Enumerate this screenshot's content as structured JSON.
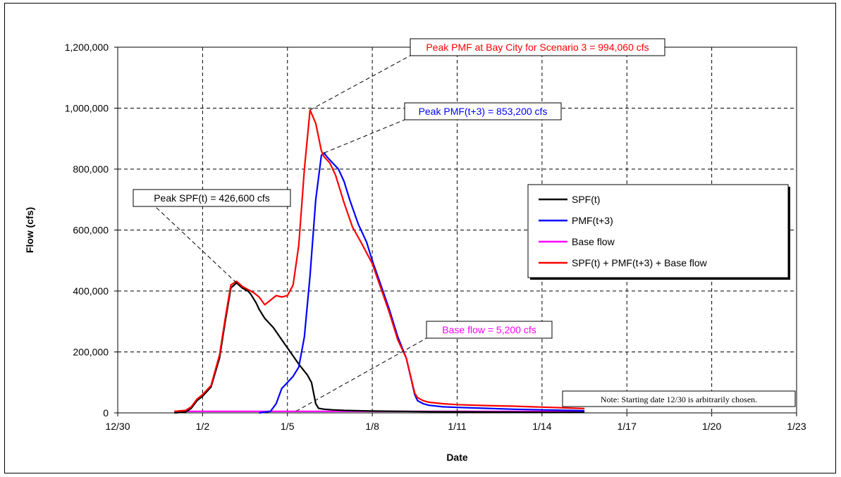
{
  "chart_data": {
    "type": "line",
    "xlabel": "Date",
    "ylabel": "Flow (cfs)",
    "xlim": [
      0,
      24
    ],
    "ylim": [
      0,
      1200000
    ],
    "x_ticks": [
      0,
      3,
      6,
      9,
      12,
      15,
      18,
      21,
      24
    ],
    "x_tick_labels": [
      "12/30",
      "1/2",
      "1/5",
      "1/8",
      "1/11",
      "1/14",
      "1/17",
      "1/20",
      "1/23"
    ],
    "y_ticks": [
      0,
      200000,
      400000,
      600000,
      800000,
      1000000,
      1200000
    ],
    "y_tick_labels": [
      "0",
      "200,000",
      "400,000",
      "600,000",
      "800,000",
      "1,000,000",
      "1,200,000"
    ],
    "grid": true,
    "legend_position": "right",
    "series": [
      {
        "name": "SPF(t)",
        "color": "#000000",
        "x": [
          2.0,
          2.4,
          2.6,
          2.8,
          3.0,
          3.3,
          3.6,
          3.8,
          4.0,
          4.2,
          4.4,
          4.6,
          4.7,
          4.9,
          5.0,
          5.2,
          5.5,
          5.8,
          6.1,
          6.4,
          6.7,
          6.85,
          7.0,
          7.1,
          7.3,
          7.6,
          8.0,
          9.0,
          10.0,
          11.0,
          12.0,
          13.0,
          14.0,
          15.0,
          16.0,
          16.5
        ],
        "y": [
          0,
          3000,
          15000,
          40000,
          55000,
          85000,
          180000,
          300000,
          410000,
          426600,
          410000,
          400000,
          390000,
          360000,
          340000,
          310000,
          280000,
          240000,
          200000,
          160000,
          125000,
          100000,
          30000,
          15000,
          12000,
          10000,
          8000,
          6000,
          5000,
          4000,
          3500,
          3000,
          2500,
          2000,
          1800,
          1500
        ]
      },
      {
        "name": "PMF(t+3)",
        "color": "#0000ff",
        "x": [
          5.0,
          5.4,
          5.6,
          5.8,
          6.0,
          6.2,
          6.4,
          6.6,
          6.8,
          7.0,
          7.2,
          7.3,
          7.4,
          7.6,
          7.8,
          8.0,
          8.2,
          8.5,
          8.8,
          9.0,
          9.3,
          9.6,
          9.9,
          10.2,
          10.5,
          10.6,
          10.8,
          11.0,
          11.5,
          12.0,
          13.0,
          14.0,
          15.0,
          16.0,
          16.5
        ],
        "y": [
          0,
          5000,
          30000,
          80000,
          100000,
          120000,
          150000,
          250000,
          450000,
          700000,
          845000,
          853200,
          840000,
          820000,
          800000,
          760000,
          700000,
          620000,
          560000,
          500000,
          420000,
          340000,
          250000,
          180000,
          60000,
          40000,
          30000,
          25000,
          20000,
          18000,
          15000,
          12000,
          10000,
          8000,
          7000
        ]
      },
      {
        "name": "Base flow",
        "color": "#ff00ff",
        "x": [
          2.0,
          16.5
        ],
        "y": [
          5200,
          5200
        ]
      },
      {
        "name": "SPF(t) + PMF(t+3) + Base flow",
        "color": "#ff0000",
        "x": [
          2.0,
          2.4,
          2.6,
          2.8,
          3.0,
          3.3,
          3.6,
          3.8,
          4.0,
          4.2,
          4.4,
          4.6,
          4.8,
          5.0,
          5.2,
          5.4,
          5.6,
          5.8,
          6.0,
          6.2,
          6.4,
          6.6,
          6.8,
          7.0,
          7.2,
          7.3,
          7.5,
          7.7,
          8.0,
          8.3,
          8.6,
          9.0,
          9.3,
          9.6,
          9.9,
          10.2,
          10.5,
          10.6,
          10.8,
          11.0,
          11.5,
          12.0,
          13.0,
          14.0,
          15.0,
          16.0,
          16.5
        ],
        "y": [
          5000,
          8000,
          20000,
          45000,
          60000,
          90000,
          190000,
          310000,
          420000,
          432000,
          415000,
          405000,
          395000,
          380000,
          355000,
          370000,
          385000,
          380000,
          385000,
          420000,
          550000,
          800000,
          994060,
          950000,
          860000,
          840000,
          820000,
          780000,
          690000,
          610000,
          560000,
          490000,
          410000,
          330000,
          240000,
          180000,
          65000,
          50000,
          40000,
          35000,
          30000,
          27000,
          24000,
          22000,
          19000,
          16000,
          14000
        ]
      }
    ],
    "annotations": [
      {
        "text": "Peak PMF at Bay City for Scenario 3 = 994,060 cfs",
        "color": "#ff0000",
        "target_x": 6.8,
        "target_y": 994060
      },
      {
        "text": "Peak PMF(t+3) = 853,200 cfs",
        "color": "#0000ff",
        "target_x": 7.3,
        "target_y": 853200
      },
      {
        "text": "Peak SPF(t) = 426,600 cfs",
        "color": "#000000",
        "target_x": 4.2,
        "target_y": 426600
      },
      {
        "text": "Base flow = 5,200 cfs",
        "color": "#ff00ff",
        "target_x": 6.3,
        "target_y": 5200
      }
    ],
    "note": "Note: Starting date 12/30 is arbitrarily chosen."
  }
}
